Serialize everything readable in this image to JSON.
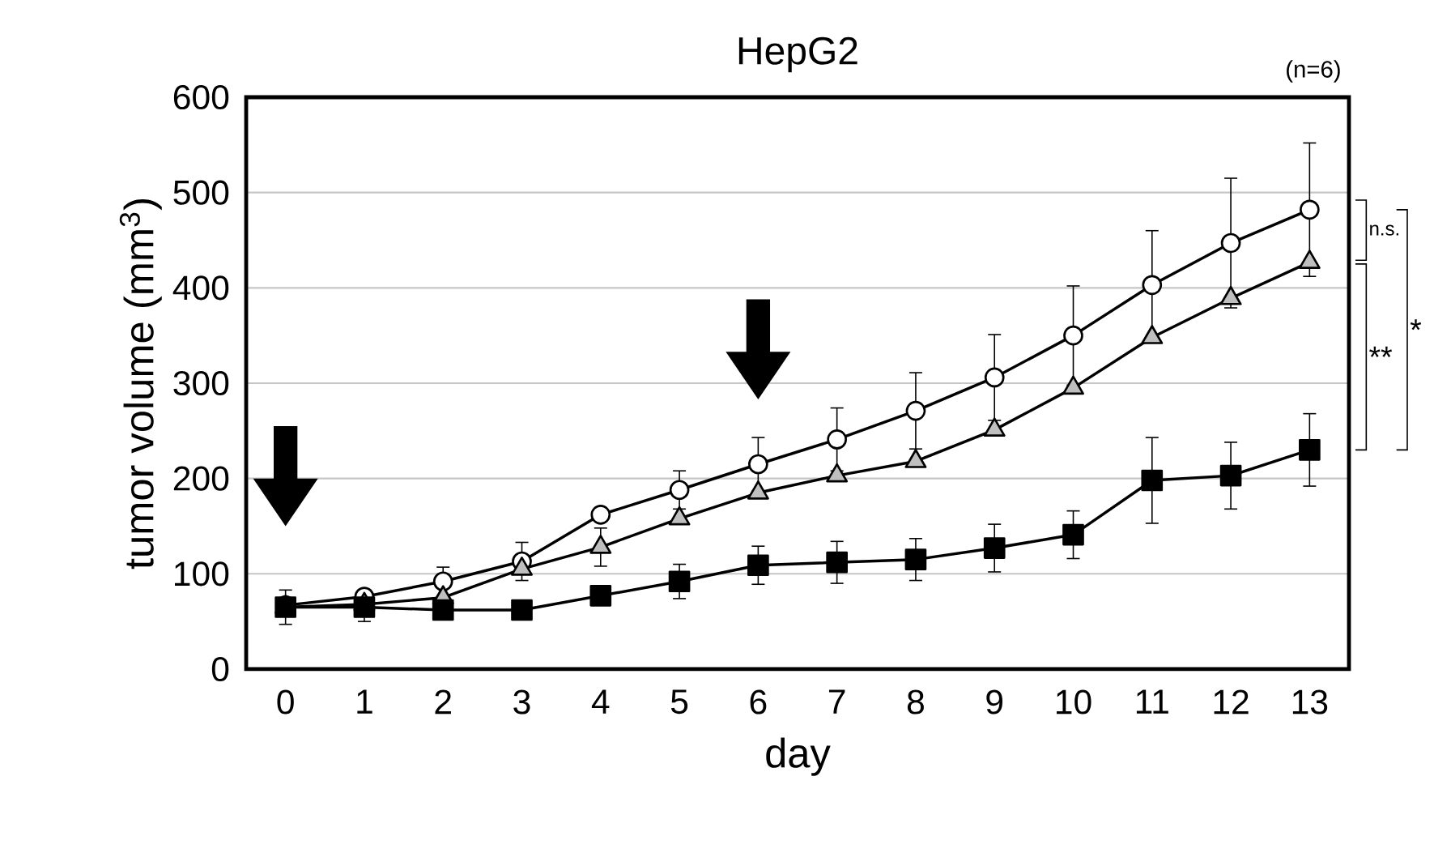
{
  "chart_data": {
    "type": "line",
    "title": "HepG2",
    "xlabel": "day",
    "ylabel": "tumor volume (mm$^{3}$)",
    "categories": [
      "0",
      "1",
      "2",
      "3",
      "4",
      "5",
      "6",
      "7",
      "8",
      "9",
      "10",
      "11",
      "12",
      "13"
    ],
    "ylim": [
      0,
      600
    ],
    "yticks": [
      0,
      100,
      200,
      300,
      400,
      500,
      600
    ],
    "grid": "y",
    "line_style": "solid",
    "annotations": [
      "(n=6)",
      "n.s.",
      "**",
      "*"
    ],
    "series": [
      {
        "color": "#ffffff",
        "marker": "circle",
        "values": [
          67,
          76,
          92,
          113,
          162,
          188,
          215,
          241,
          271,
          306,
          350,
          403,
          447,
          482
        ],
        "errors": [
          null,
          null,
          15,
          20,
          null,
          20,
          28,
          33,
          40,
          45,
          52,
          57,
          68,
          70
        ]
      },
      {
        "color": "#bfbfbf",
        "marker": "triangle",
        "values": [
          65,
          68,
          75,
          105,
          128,
          158,
          185,
          203,
          218,
          251,
          295,
          348,
          389,
          427
        ],
        "errors": [
          null,
          null,
          null,
          null,
          20,
          null,
          null,
          null,
          null,
          null,
          null,
          null,
          null,
          null
        ]
      },
      {
        "color": "#000000",
        "marker": "square",
        "values": [
          65,
          65,
          62,
          62,
          77,
          92,
          109,
          112,
          115,
          127,
          141,
          198,
          203,
          230
        ],
        "errors": [
          18,
          15,
          null,
          null,
          null,
          18,
          20,
          22,
          22,
          25,
          25,
          45,
          35,
          38
        ]
      }
    ]
  }
}
